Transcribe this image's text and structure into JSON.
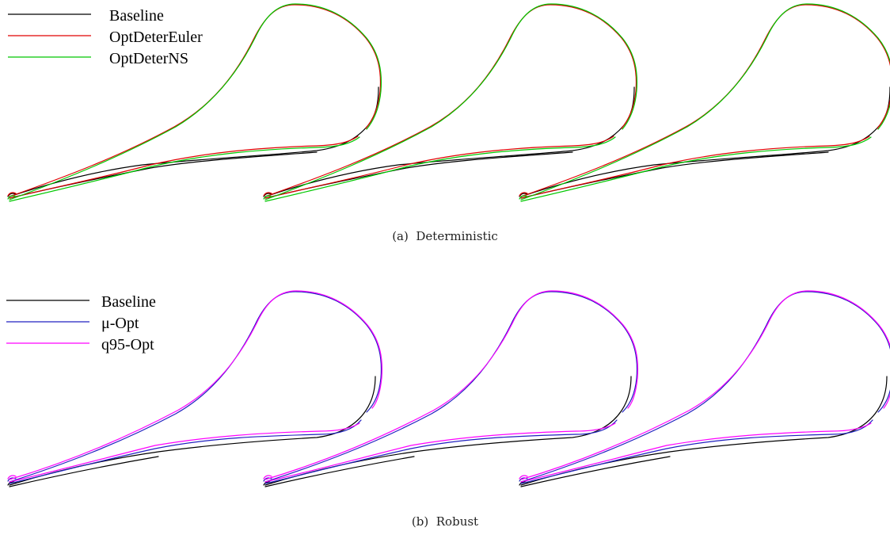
{
  "panels": [
    {
      "id": "a",
      "caption": "(a)  Deterministic",
      "legend": [
        {
          "label": "Baseline",
          "color": "#000000"
        },
        {
          "label": "OptDeterEuler",
          "color": "#e00000"
        },
        {
          "label": "OptDeterNS",
          "color": "#00c800"
        }
      ]
    },
    {
      "id": "b",
      "caption": "(b)  Robust",
      "legend": [
        {
          "label": "Baseline",
          "color": "#000000"
        },
        {
          "label": "μ-Opt",
          "color": "#2020c0"
        },
        {
          "label": "q95-Opt",
          "color": "#ff00ff"
        }
      ]
    }
  ]
}
